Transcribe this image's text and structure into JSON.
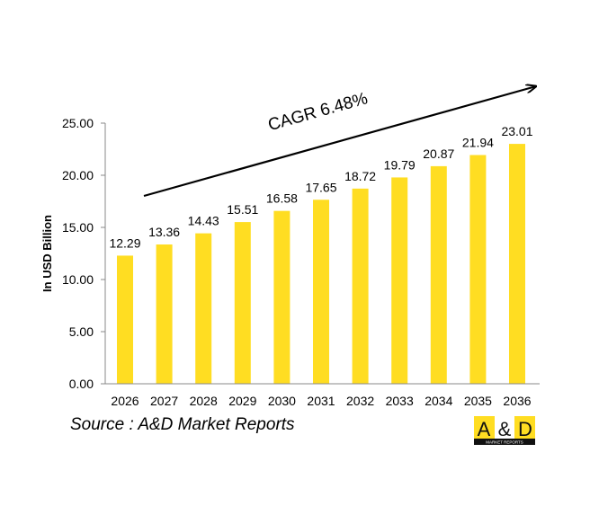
{
  "chart_data": {
    "type": "bar",
    "categories": [
      "2026",
      "2027",
      "2028",
      "2029",
      "2030",
      "2031",
      "2032",
      "2033",
      "2034",
      "2035",
      "2036"
    ],
    "values": [
      12.29,
      13.36,
      14.43,
      15.51,
      16.58,
      17.65,
      18.72,
      19.79,
      20.87,
      21.94,
      23.01
    ],
    "value_labels": [
      "12.29",
      "13.36",
      "14.43",
      "15.51",
      "16.58",
      "17.65",
      "18.72",
      "19.79",
      "20.87",
      "21.94",
      "23.01"
    ],
    "ylabel": "In USD Billion",
    "ylim": [
      0,
      25
    ],
    "yticks": [
      "0.00",
      "5.00",
      "10.00",
      "15.00",
      "20.00",
      "25.00"
    ],
    "grid": false,
    "bar_color": "#FFDD22",
    "annotation": "CAGR 6.48%"
  },
  "source": "Source : A&D Market Reports",
  "logo": {
    "text": "A&D",
    "subtext": "MARKET REPORTS"
  }
}
